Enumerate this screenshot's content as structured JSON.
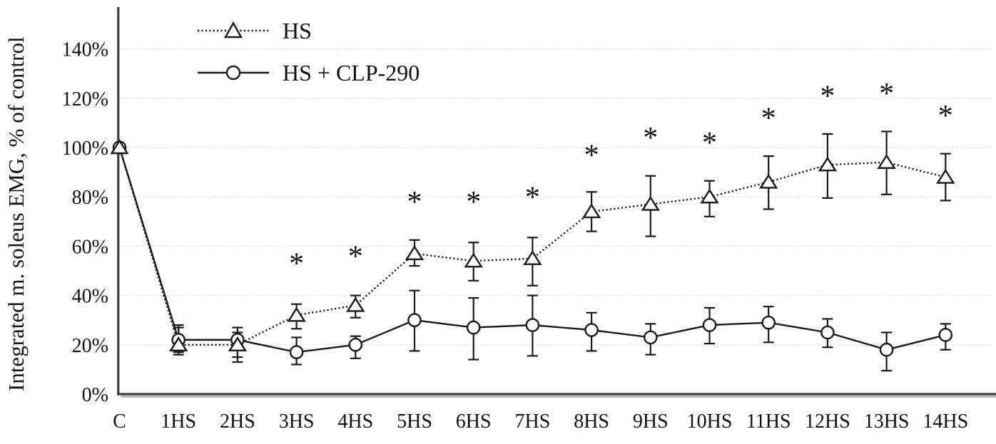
{
  "chart_data": {
    "type": "line",
    "title": "",
    "xlabel": "",
    "ylabel": "Integrated m. soleus EMG, % of control",
    "ylim": [
      0,
      150
    ],
    "yticks": [
      0,
      20,
      40,
      60,
      80,
      100,
      120,
      140
    ],
    "ytick_suffix": "%",
    "grid": "horizontal-dotted-light",
    "legend_position": "top-left-inside",
    "axis_color": "#3d3d3d",
    "series_color": "#1a1a1a",
    "background_color": "#ffffff",
    "categories": [
      "C",
      "1HS",
      "2HS",
      "3HS",
      "4HS",
      "5HS",
      "6HS",
      "7HS",
      "8HS",
      "9HS",
      "10HS",
      "11HS",
      "12HS",
      "13HS",
      "14HS"
    ],
    "series": [
      {
        "name": "HS",
        "marker": "triangle",
        "line_style": "dotted",
        "values": [
          100,
          20,
          20,
          32,
          36,
          57,
          54,
          55,
          74,
          77,
          80,
          86,
          93,
          94,
          88
        ],
        "err_up": [
          0,
          7,
          5,
          4.5,
          4,
          5.5,
          7.5,
          8.5,
          8,
          11.5,
          6.5,
          10.5,
          12.5,
          12.5,
          9.5
        ],
        "err_down": [
          0,
          4,
          7,
          5.5,
          5,
          5,
          8,
          11,
          8,
          13,
          8,
          11,
          13.5,
          13,
          9.5
        ]
      },
      {
        "name": "HS + CLP-290",
        "marker": "circle",
        "line_style": "solid",
        "values": [
          100,
          22,
          22,
          17,
          20,
          30,
          27,
          28,
          26,
          23,
          28,
          29,
          25,
          18,
          24
        ],
        "err_up": [
          0,
          6,
          5,
          6,
          3.5,
          12,
          12,
          12,
          7,
          5.5,
          7,
          6.5,
          5.5,
          7,
          4.5
        ],
        "err_down": [
          0,
          5,
          7,
          5,
          5.5,
          12.5,
          13,
          12.5,
          8.5,
          7,
          7.5,
          8,
          6,
          8.5,
          6
        ]
      }
    ],
    "significance_symbol": "*",
    "significance_marks": [
      {
        "category": "3HS",
        "y": 55
      },
      {
        "category": "4HS",
        "y": 58
      },
      {
        "category": "5HS",
        "y": 80
      },
      {
        "category": "6HS",
        "y": 80
      },
      {
        "category": "7HS",
        "y": 82
      },
      {
        "category": "8HS",
        "y": 99
      },
      {
        "category": "9HS",
        "y": 106
      },
      {
        "category": "10HS",
        "y": 104
      },
      {
        "category": "11HS",
        "y": 114
      },
      {
        "category": "12HS",
        "y": 123
      },
      {
        "category": "13HS",
        "y": 124
      },
      {
        "category": "14HS",
        "y": 115
      }
    ]
  }
}
